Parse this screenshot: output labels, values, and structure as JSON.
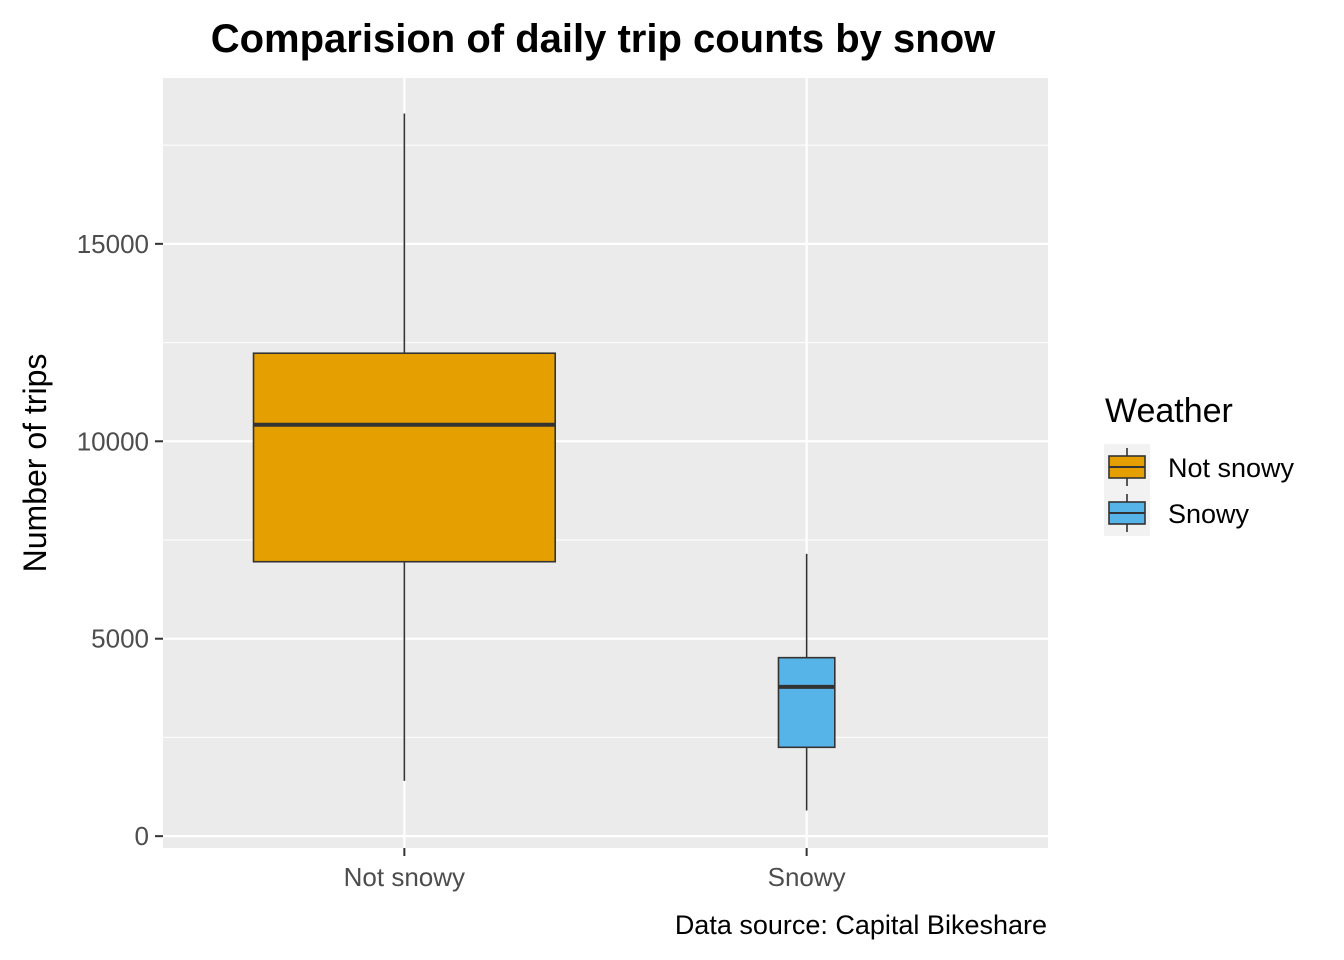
{
  "chart_data": {
    "type": "box",
    "title": "Comparision of daily trip counts by snow",
    "xlabel": "",
    "ylabel": "Number of trips",
    "caption": "Data source: Capital Bikeshare",
    "categories": [
      "Not snowy",
      "Snowy"
    ],
    "ylim": [
      -300,
      19200
    ],
    "yticks": [
      0,
      5000,
      10000,
      15000
    ],
    "ytick_labels": [
      "0",
      "5000",
      "10000",
      "15000"
    ],
    "grid": true,
    "boxes": [
      {
        "category": "Not snowy",
        "min": 1400,
        "q1": 6950,
        "median": 10420,
        "q3": 12230,
        "max": 18300,
        "fill": "#E69F00"
      },
      {
        "category": "Snowy",
        "min": 650,
        "q1": 2250,
        "median": 3780,
        "q3": 4520,
        "max": 7150,
        "fill": "#56B4E9"
      }
    ],
    "legend": {
      "title": "Weather",
      "position": "right",
      "entries": [
        {
          "label": "Not snowy",
          "fill": "#E69F00"
        },
        {
          "label": "Snowy",
          "fill": "#56B4E9"
        }
      ]
    }
  },
  "colors": {
    "panel_background": "#EBEBEB",
    "grid_major": "#FFFFFF",
    "box_outline": "#333333"
  }
}
